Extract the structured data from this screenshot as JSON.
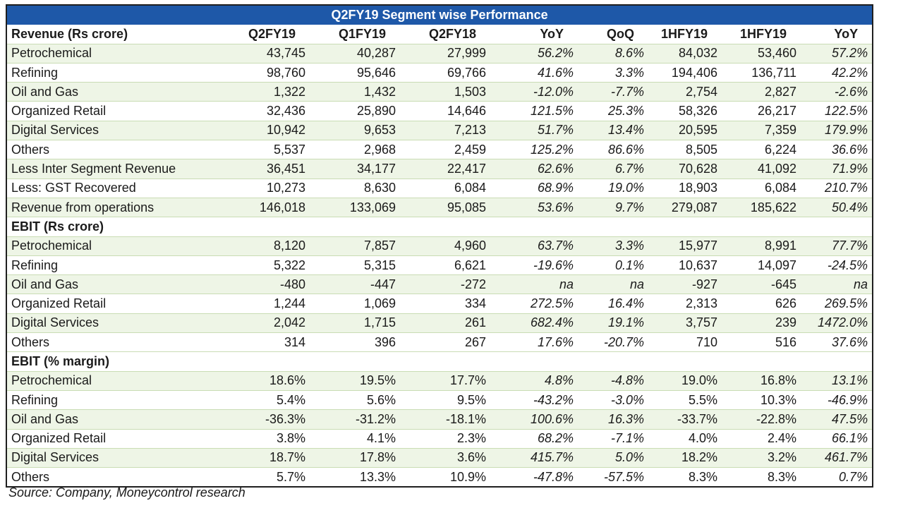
{
  "title": "Q2FY19 Segment wise Performance",
  "headers": [
    "Revenue (Rs crore)",
    "Q2FY19",
    "Q1FY19",
    "Q2FY18",
    "YoY",
    "QoQ",
    "1HFY19",
    "1HFY19",
    "YoY"
  ],
  "revenue": [
    [
      "Petrochemical",
      "43,745",
      "40,287",
      "27,999",
      "56.2%",
      "8.6%",
      "84,032",
      "53,460",
      "57.2%"
    ],
    [
      "Refining",
      "98,760",
      "95,646",
      "69,766",
      "41.6%",
      "3.3%",
      "194,406",
      "136,711",
      "42.2%"
    ],
    [
      "Oil and Gas",
      "1,322",
      "1,432",
      "1,503",
      "-12.0%",
      "-7.7%",
      "2,754",
      "2,827",
      "-2.6%"
    ],
    [
      "Organized Retail",
      "32,436",
      "25,890",
      "14,646",
      "121.5%",
      "25.3%",
      "58,326",
      "26,217",
      "122.5%"
    ],
    [
      "Digital Services",
      "10,942",
      "9,653",
      "7,213",
      "51.7%",
      "13.4%",
      "20,595",
      "7,359",
      "179.9%"
    ],
    [
      "Others",
      "5,537",
      "2,968",
      "2,459",
      "125.2%",
      "86.6%",
      "8,505",
      "6,224",
      "36.6%"
    ],
    [
      "Less Inter Segment Revenue",
      "36,451",
      "34,177",
      "22,417",
      "62.6%",
      "6.7%",
      "70,628",
      "41,092",
      "71.9%"
    ],
    [
      "Less: GST Recovered",
      "10,273",
      "8,630",
      "6,084",
      "68.9%",
      "19.0%",
      "18,903",
      "6,084",
      "210.7%"
    ],
    [
      "Revenue from operations",
      "146,018",
      "133,069",
      "95,085",
      "53.6%",
      "9.7%",
      "279,087",
      "185,622",
      "50.4%"
    ]
  ],
  "ebit_title": "EBIT (Rs crore)",
  "ebit": [
    [
      "Petrochemical",
      "8,120",
      "7,857",
      "4,960",
      "63.7%",
      "3.3%",
      "15,977",
      "8,991",
      "77.7%"
    ],
    [
      "Refining",
      "5,322",
      "5,315",
      "6,621",
      "-19.6%",
      "0.1%",
      "10,637",
      "14,097",
      "-24.5%"
    ],
    [
      "Oil and Gas",
      "-480",
      "-447",
      "-272",
      "na",
      "na",
      "-927",
      "-645",
      "na"
    ],
    [
      "Organized Retail",
      "1,244",
      "1,069",
      "334",
      "272.5%",
      "16.4%",
      "2,313",
      "626",
      "269.5%"
    ],
    [
      "Digital Services",
      "2,042",
      "1,715",
      "261",
      "682.4%",
      "19.1%",
      "3,757",
      "239",
      "1472.0%"
    ],
    [
      "Others",
      "314",
      "396",
      "267",
      "17.6%",
      "-20.7%",
      "710",
      "516",
      "37.6%"
    ]
  ],
  "margin_title": "EBIT (% margin)",
  "margin": [
    [
      "Petrochemical",
      "18.6%",
      "19.5%",
      "17.7%",
      "4.8%",
      "-4.8%",
      "19.0%",
      "16.8%",
      "13.1%"
    ],
    [
      "Refining",
      "5.4%",
      "5.6%",
      "9.5%",
      "-43.2%",
      "-3.0%",
      "5.5%",
      "10.3%",
      "-46.9%"
    ],
    [
      "Oil and Gas",
      "-36.3%",
      "-31.2%",
      "-18.1%",
      "100.6%",
      "16.3%",
      "-33.7%",
      "-22.8%",
      "47.5%"
    ],
    [
      "Organized Retail",
      "3.8%",
      "4.1%",
      "2.3%",
      "68.2%",
      "-7.1%",
      "4.0%",
      "2.4%",
      "66.1%"
    ],
    [
      "Digital Services",
      "18.7%",
      "17.8%",
      "3.6%",
      "415.7%",
      "5.0%",
      "18.2%",
      "3.2%",
      "461.7%"
    ],
    [
      "Others",
      "5.7%",
      "13.3%",
      "10.9%",
      "-47.8%",
      "-57.5%",
      "8.3%",
      "8.3%",
      "0.7%"
    ]
  ],
  "source": "Source: Company, Moneycontrol research"
}
